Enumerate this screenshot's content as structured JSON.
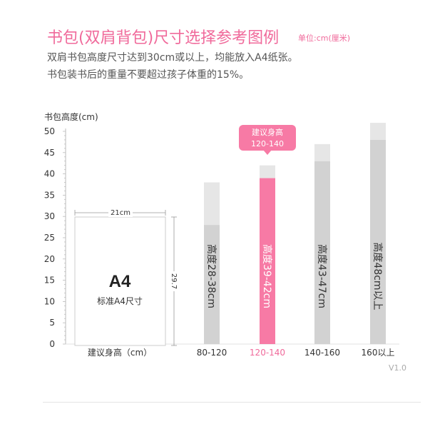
{
  "header": {
    "title": "书包(双肩背包)尺寸选择参考图例",
    "unit": "单位:cm(厘米)",
    "line1": "双肩书包高度尺寸达到30cm或以上，均能放入A4纸张。",
    "line2": "书包装书后的重量不要超过孩子体重的15%。"
  },
  "chart_data": {
    "type": "bar",
    "ylabel": "书包高度(cm)",
    "xlabel": "建议身高（cm）",
    "ylim": [
      0,
      50
    ],
    "yticks": [
      "0",
      "5",
      "10",
      "15",
      "20",
      "25",
      "30",
      "35",
      "40",
      "45",
      "50"
    ],
    "categories": [
      "80-120",
      "120-140",
      "140-160",
      "160以上"
    ],
    "series": [
      {
        "values_min": [
          28,
          39,
          43,
          48
        ],
        "values_max": [
          38,
          42,
          47,
          52
        ]
      }
    ],
    "bar_labels": [
      "高度28-38cm",
      "高度39-42cm",
      "高度43-47cm",
      "高度48cm以上"
    ],
    "highlight_index": 1,
    "callout": {
      "line1": "建议身高",
      "line2": "120-140"
    },
    "reference": {
      "name": "A4",
      "caption": "标准A4尺寸",
      "width_label": "21cm",
      "height_label": "29.7",
      "height_value": 29.7
    },
    "colors": {
      "accent": "#f06a9b",
      "bar_light": "#e6e6e6",
      "bar_dark": "#d2d2d2",
      "highlight": "#f77aa5",
      "highlight_top": "#e6e6e6"
    },
    "grid": false
  },
  "version": "V1.0"
}
